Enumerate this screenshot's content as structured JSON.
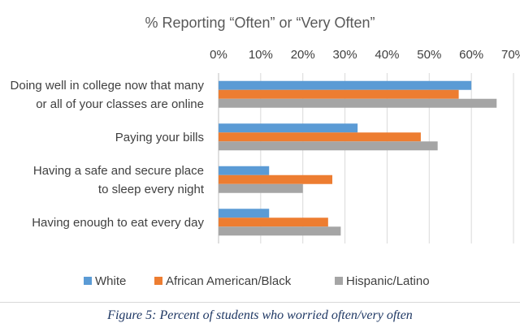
{
  "chart_data": {
    "type": "bar",
    "orientation": "horizontal",
    "title": "% Reporting “Often” or “Very Often”",
    "categories": [
      [
        "Doing well in college now that many",
        "or all of your classes are online"
      ],
      [
        "Paying your bills"
      ],
      [
        "Having a safe and secure place",
        "to sleep every night"
      ],
      [
        "Having enough to eat every day"
      ]
    ],
    "series": [
      {
        "name": "White",
        "color": "#5b9bd5",
        "values": [
          60,
          33,
          12,
          12
        ]
      },
      {
        "name": "African American/Black",
        "color": "#ed7d31",
        "values": [
          57,
          48,
          27,
          26
        ]
      },
      {
        "name": "Hispanic/Latino",
        "color": "#a5a5a5",
        "values": [
          66,
          52,
          20,
          29
        ]
      }
    ],
    "xlim": [
      0,
      70
    ],
    "xticks": [
      "0%",
      "10%",
      "20%",
      "30%",
      "40%",
      "50%",
      "60%",
      "70%"
    ],
    "grid": true,
    "legend_position": "bottom"
  },
  "caption": "Figure 5: Percent of students who worried often/very often"
}
